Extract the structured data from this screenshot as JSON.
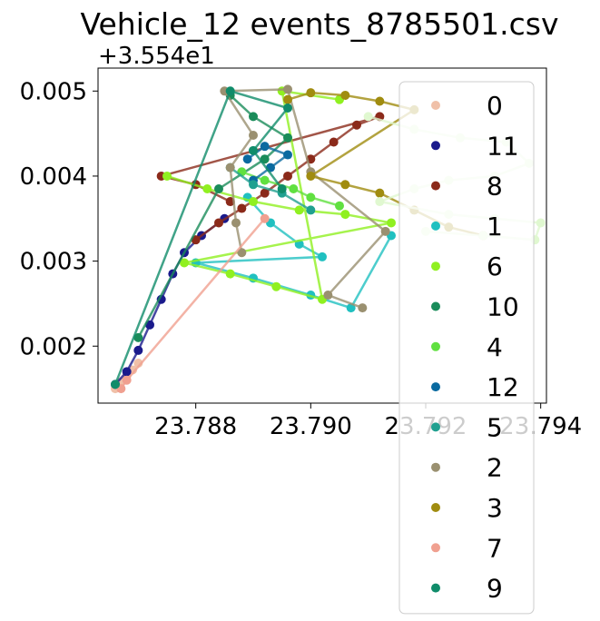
{
  "chart_data": {
    "type": "scatter",
    "title": "Vehicle_12 events_8785501.csv",
    "xlabel": "",
    "ylabel": "",
    "y_offset_label": "+3.554e1",
    "xlim": [
      23.7863,
      23.7941
    ],
    "ylim": [
      0.00133,
      0.00527
    ],
    "x_ticks": [
      23.788,
      23.79,
      23.792,
      23.794
    ],
    "x_tick_labels": [
      "23.788",
      "23.790",
      "23.792",
      "23.794"
    ],
    "y_ticks": [
      0.002,
      0.003,
      0.004,
      0.005
    ],
    "y_tick_labels": [
      "0.002",
      "0.003",
      "0.004",
      "0.005"
    ],
    "grid": false,
    "legend_position": "right, overlapping plot",
    "series": [
      {
        "name": "0",
        "color": "#f0c0a8",
        "points": [
          [
            23.7866,
            0.0015
          ],
          [
            23.7867,
            0.00158
          ],
          [
            23.7868,
            0.00165
          ],
          [
            23.7869,
            0.00172
          ],
          [
            23.787,
            0.0018
          ]
        ]
      },
      {
        "name": "11",
        "color": "#1a1a8c",
        "points": [
          [
            23.7866,
            0.00155
          ],
          [
            23.7868,
            0.0017
          ],
          [
            23.787,
            0.00195
          ],
          [
            23.7872,
            0.00225
          ],
          [
            23.7874,
            0.00255
          ],
          [
            23.7876,
            0.00285
          ],
          [
            23.7878,
            0.0031
          ],
          [
            23.7881,
            0.0033
          ],
          [
            23.7885,
            0.0035
          ]
        ]
      },
      {
        "name": "8",
        "color": "#8b2a1a",
        "points": [
          [
            23.788,
            0.00325
          ],
          [
            23.7884,
            0.00345
          ],
          [
            23.7888,
            0.00362
          ],
          [
            23.7892,
            0.0038
          ],
          [
            23.7896,
            0.004
          ],
          [
            23.79,
            0.0042
          ],
          [
            23.7904,
            0.0044
          ],
          [
            23.7908,
            0.0046
          ],
          [
            23.7912,
            0.0047
          ],
          [
            23.7874,
            0.004
          ],
          [
            23.788,
            0.0039
          ],
          [
            23.7886,
            0.0037
          ]
        ]
      },
      {
        "name": "1",
        "color": "#20c0c0",
        "points": [
          [
            23.7889,
            0.00375
          ],
          [
            23.7893,
            0.00345
          ],
          [
            23.7898,
            0.0032
          ],
          [
            23.7902,
            0.00305
          ],
          [
            23.788,
            0.00298
          ],
          [
            23.789,
            0.0028
          ],
          [
            23.79,
            0.0026
          ],
          [
            23.7907,
            0.00245
          ],
          [
            23.7914,
            0.0033
          ]
        ]
      },
      {
        "name": "6",
        "color": "#90f020",
        "points": [
          [
            23.7875,
            0.004
          ],
          [
            23.7882,
            0.00385
          ],
          [
            23.789,
            0.0037
          ],
          [
            23.7898,
            0.0036
          ],
          [
            23.7906,
            0.00355
          ],
          [
            23.7914,
            0.00345
          ],
          [
            23.7878,
            0.00298
          ],
          [
            23.7886,
            0.00285
          ],
          [
            23.7894,
            0.0027
          ],
          [
            23.7902,
            0.00255
          ],
          [
            23.7895,
            0.005
          ],
          [
            23.7905,
            0.0049
          ]
        ]
      },
      {
        "name": "10",
        "color": "#1a8c5a",
        "points": [
          [
            23.787,
            0.0021
          ],
          [
            23.7884,
            0.00385
          ],
          [
            23.7892,
            0.0042
          ],
          [
            23.7896,
            0.00445
          ],
          [
            23.789,
            0.0047
          ],
          [
            23.7886,
            0.00495
          ]
        ]
      },
      {
        "name": "4",
        "color": "#60e040",
        "points": [
          [
            23.7888,
            0.00405
          ],
          [
            23.7892,
            0.00395
          ],
          [
            23.7897,
            0.00385
          ],
          [
            23.79,
            0.00375
          ],
          [
            23.7905,
            0.00365
          ]
        ]
      },
      {
        "name": "12",
        "color": "#0a6aa0",
        "points": [
          [
            23.789,
            0.00395
          ],
          [
            23.7893,
            0.0041
          ],
          [
            23.7896,
            0.00425
          ],
          [
            23.7892,
            0.00435
          ],
          [
            23.7889,
            0.0042
          ]
        ]
      },
      {
        "name": "5",
        "color": "#20a090",
        "points": [
          [
            23.7886,
            0.0041
          ],
          [
            23.789,
            0.0039
          ],
          [
            23.7895,
            0.0038
          ],
          [
            23.79,
            0.0036
          ]
        ]
      },
      {
        "name": "2",
        "color": "#9a9070",
        "points": [
          [
            23.7888,
            0.0031
          ],
          [
            23.7887,
            0.00345
          ],
          [
            23.7886,
            0.0041
          ],
          [
            23.789,
            0.00448
          ],
          [
            23.7885,
            0.005
          ],
          [
            23.7896,
            0.00502
          ],
          [
            23.79,
            0.00405
          ],
          [
            23.7913,
            0.00335
          ],
          [
            23.7903,
            0.0026
          ],
          [
            23.7909,
            0.00245
          ]
        ]
      },
      {
        "name": "3",
        "color": "#a08c10",
        "points": [
          [
            23.7896,
            0.0049
          ],
          [
            23.79,
            0.00498
          ],
          [
            23.7906,
            0.00495
          ],
          [
            23.7912,
            0.00488
          ],
          [
            23.7918,
            0.00478
          ],
          [
            23.79,
            0.004
          ],
          [
            23.7906,
            0.0039
          ],
          [
            23.7912,
            0.0038
          ],
          [
            23.7918,
            0.0036
          ],
          [
            23.7924,
            0.0034
          ],
          [
            23.793,
            0.0033
          ]
        ]
      },
      {
        "name": "7",
        "color": "#f0a090",
        "points": [
          [
            23.7867,
            0.0015
          ],
          [
            23.7868,
            0.0016
          ],
          [
            23.7892,
            0.0035
          ]
        ]
      },
      {
        "name": "9",
        "color": "#108c6a",
        "points": [
          [
            23.7866,
            0.00155
          ],
          [
            23.7886,
            0.005
          ],
          [
            23.7896,
            0.0048
          ],
          [
            23.789,
            0.0043
          ],
          [
            23.7895,
            0.00385
          ]
        ]
      },
      {
        "name": "",
        "color": "#e0f8d0",
        "points": [
          [
            23.791,
            0.0047
          ],
          [
            23.7918,
            0.00455
          ],
          [
            23.7926,
            0.00445
          ],
          [
            23.7934,
            0.0044
          ],
          [
            23.7938,
            0.00415
          ],
          [
            23.7932,
            0.004
          ],
          [
            23.7924,
            0.00395
          ],
          [
            23.7918,
            0.00385
          ],
          [
            23.7912,
            0.0037
          ],
          [
            23.7924,
            0.00355
          ],
          [
            23.7932,
            0.0035
          ],
          [
            23.794,
            0.00345
          ],
          [
            23.7939,
            0.00325
          ],
          [
            23.793,
            0.0033
          ],
          [
            23.792,
            0.00335
          ]
        ]
      }
    ]
  }
}
